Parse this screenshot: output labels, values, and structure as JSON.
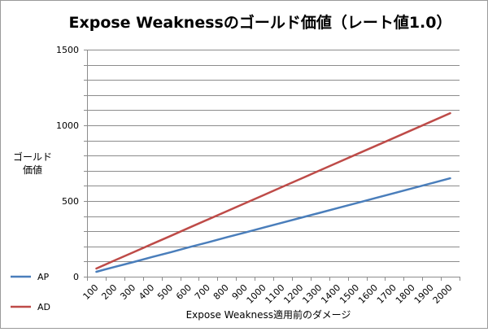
{
  "chart_data": {
    "type": "line",
    "title": "Expose Weaknessのゴールド価値（レート値1.0）",
    "xlabel": "Expose Weakness適用前のダメージ",
    "ylabel_lines": [
      "ゴールド",
      "価値"
    ],
    "categories": [
      "100",
      "200",
      "300",
      "400",
      "500",
      "600",
      "700",
      "800",
      "900",
      "1000",
      "1100",
      "1200",
      "1300",
      "1400",
      "1500",
      "1600",
      "1700",
      "1800",
      "1900",
      "2000"
    ],
    "ylim": [
      0,
      1500
    ],
    "yticks": [
      "0",
      "500",
      "1000",
      "1500"
    ],
    "grid": true,
    "legend_position": "bottom-left",
    "series": [
      {
        "name": "AP",
        "color": "#4a7ebb",
        "values": [
          32,
          65,
          97,
          130,
          162,
          195,
          227,
          260,
          292,
          325,
          357,
          390,
          422,
          455,
          487,
          520,
          552,
          585,
          617,
          650
        ]
      },
      {
        "name": "AD",
        "color": "#be4b48",
        "values": [
          54,
          108,
          162,
          216,
          270,
          324,
          378,
          432,
          486,
          540,
          594,
          648,
          702,
          756,
          810,
          864,
          918,
          972,
          1026,
          1080
        ]
      }
    ]
  }
}
